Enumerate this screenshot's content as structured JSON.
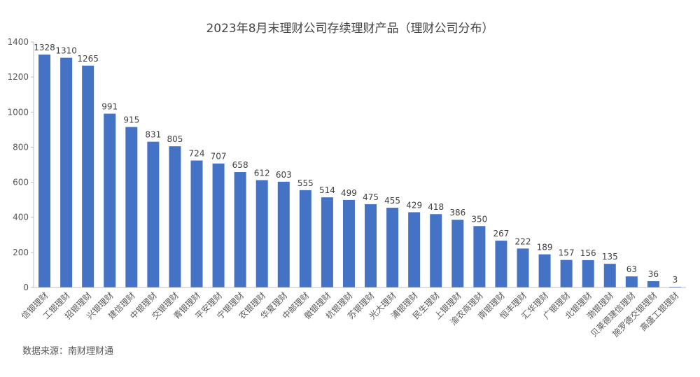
{
  "title": "2023年8月末理财公司存续理财产品（理财公司分布）",
  "source": "数据来源：南财理财通",
  "colors": {
    "bar": "#4472C4",
    "axis": "#bfbfbf",
    "text": "#595959"
  },
  "chart_data": {
    "type": "bar",
    "title": "2023年8月末理财公司存续理财产品（理财公司分布）",
    "xlabel": "",
    "ylabel": "",
    "ylim": [
      0,
      1400
    ],
    "yticks": [
      0,
      200,
      400,
      600,
      800,
      1000,
      1200,
      1400
    ],
    "grid": false,
    "legend": "none",
    "categories": [
      "信银理财",
      "工银理财",
      "招银理财",
      "兴银理财",
      "建信理财",
      "中银理财",
      "交银理财",
      "青银理财",
      "平安理财",
      "宁银理财",
      "农银理财",
      "华夏理财",
      "中邮理财",
      "徽银理财",
      "杭银理财",
      "苏银理财",
      "光大理财",
      "浦银理财",
      "民生理财",
      "上银理财",
      "渝农商理财",
      "南银理财",
      "恒丰理财",
      "汇华理财",
      "广银理财",
      "北银理财",
      "渤银理财",
      "贝莱德建信理财",
      "施罗德交银理财",
      "高盛工银理财"
    ],
    "values": [
      1328,
      1310,
      1265,
      991,
      915,
      831,
      805,
      724,
      707,
      658,
      612,
      603,
      555,
      514,
      499,
      475,
      455,
      429,
      418,
      386,
      350,
      267,
      222,
      189,
      157,
      156,
      135,
      63,
      36,
      3
    ]
  }
}
